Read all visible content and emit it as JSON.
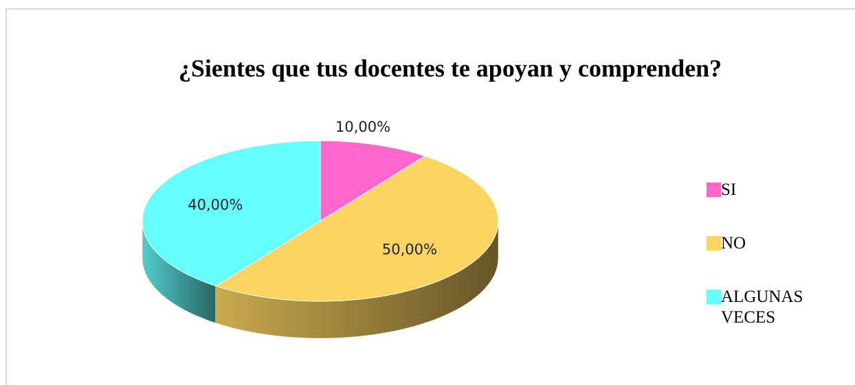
{
  "chart_data": {
    "type": "pie",
    "title": "¿Sientes que tus docentes te apoyan y comprenden?",
    "categories": [
      "SI",
      "NO",
      "ALGUNAS VECES"
    ],
    "values": [
      10,
      50,
      40
    ],
    "value_labels": [
      "10,00%",
      "50,00%",
      "40,00%"
    ],
    "colors": [
      "#ff66cc",
      "#fcd462",
      "#66ffff"
    ],
    "legend": "right"
  }
}
